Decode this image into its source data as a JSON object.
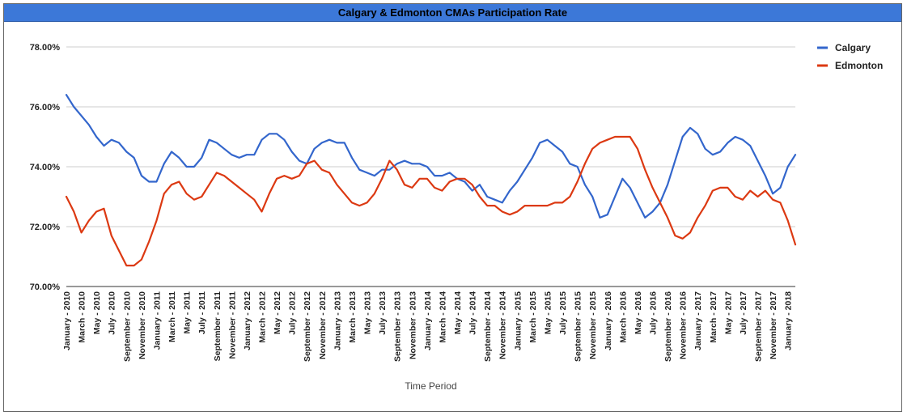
{
  "chart_data": {
    "type": "line",
    "title": "Calgary & Edmonton CMAs Participation Rate",
    "xlabel": "Time Period",
    "ylabel": "",
    "ylim": [
      70,
      78
    ],
    "yticks": [
      "70.00%",
      "72.00%",
      "74.00%",
      "76.00%",
      "78.00%"
    ],
    "ytick_values": [
      70,
      72,
      74,
      76,
      78
    ],
    "grid": true,
    "legend_position": "right",
    "x_labels": [
      "January - 2010",
      "March - 2010",
      "May - 2010",
      "July - 2010",
      "September - 2010",
      "November - 2010",
      "January - 2011",
      "March - 2011",
      "May - 2011",
      "July - 2011",
      "September - 2011",
      "November - 2011",
      "January - 2012",
      "March - 2012",
      "May - 2012",
      "July - 2012",
      "September - 2012",
      "November - 2012",
      "January - 2013",
      "March - 2013",
      "May - 2013",
      "July - 2013",
      "September - 2013",
      "November - 2013",
      "January - 2014",
      "March - 2014",
      "May - 2014",
      "July - 2014",
      "September - 2014",
      "November - 2014",
      "January - 2015",
      "March - 2015",
      "May - 2015",
      "July - 2015",
      "September - 2015",
      "November - 2015",
      "January - 2016",
      "March - 2016",
      "May - 2016",
      "July - 2016",
      "September - 2016",
      "November - 2016",
      "January - 2017",
      "March - 2017",
      "May - 2017",
      "July - 2017",
      "September - 2017",
      "November - 2017",
      "January - 2018"
    ],
    "series": [
      {
        "name": "Calgary",
        "color": "#3366cc",
        "values": [
          76.4,
          76.0,
          75.7,
          75.4,
          75.0,
          74.7,
          74.9,
          74.8,
          74.5,
          74.3,
          73.7,
          73.5,
          73.5,
          74.1,
          74.5,
          74.3,
          74.0,
          74.0,
          74.3,
          74.9,
          74.8,
          74.6,
          74.4,
          74.3,
          74.4,
          74.4,
          74.9,
          75.1,
          75.1,
          74.9,
          74.5,
          74.2,
          74.1,
          74.6,
          74.8,
          74.9,
          74.8,
          74.8,
          74.3,
          73.9,
          73.8,
          73.7,
          73.9,
          73.9,
          74.1,
          74.2,
          74.1,
          74.1,
          74.0,
          73.7,
          73.7,
          73.8,
          73.6,
          73.5,
          73.2,
          73.4,
          73.0,
          72.9,
          72.8,
          73.2,
          73.5,
          73.9,
          74.3,
          74.8,
          74.9,
          74.7,
          74.5,
          74.1,
          74.0,
          73.4,
          73.0,
          72.3,
          72.4,
          73.0,
          73.6,
          73.3,
          72.8,
          72.3,
          72.5,
          72.8,
          73.4,
          74.2,
          75.0,
          75.3,
          75.1,
          74.6,
          74.4,
          74.5,
          74.8,
          75.0,
          74.9,
          74.7,
          74.2,
          73.7,
          73.1,
          73.3,
          74.0,
          74.4
        ]
      },
      {
        "name": "Edmonton",
        "color": "#dc3912",
        "values": [
          73.0,
          72.5,
          71.8,
          72.2,
          72.5,
          72.6,
          71.7,
          71.2,
          70.7,
          70.7,
          70.9,
          71.5,
          72.2,
          73.1,
          73.4,
          73.5,
          73.1,
          72.9,
          73.0,
          73.4,
          73.8,
          73.7,
          73.5,
          73.3,
          73.1,
          72.9,
          72.5,
          73.1,
          73.6,
          73.7,
          73.6,
          73.7,
          74.1,
          74.2,
          73.9,
          73.8,
          73.4,
          73.1,
          72.8,
          72.7,
          72.8,
          73.1,
          73.6,
          74.2,
          73.9,
          73.4,
          73.3,
          73.6,
          73.6,
          73.3,
          73.2,
          73.5,
          73.6,
          73.6,
          73.4,
          73.0,
          72.7,
          72.7,
          72.5,
          72.4,
          72.5,
          72.7,
          72.7,
          72.7,
          72.7,
          72.8,
          72.8,
          73.0,
          73.5,
          74.1,
          74.6,
          74.8,
          74.9,
          75.0,
          75.0,
          75.0,
          74.6,
          73.9,
          73.3,
          72.8,
          72.3,
          71.7,
          71.6,
          71.8,
          72.3,
          72.7,
          73.2,
          73.3,
          73.3,
          73.0,
          72.9,
          73.2,
          73.0,
          73.2,
          72.9,
          72.8,
          72.2,
          71.4
        ]
      }
    ]
  }
}
